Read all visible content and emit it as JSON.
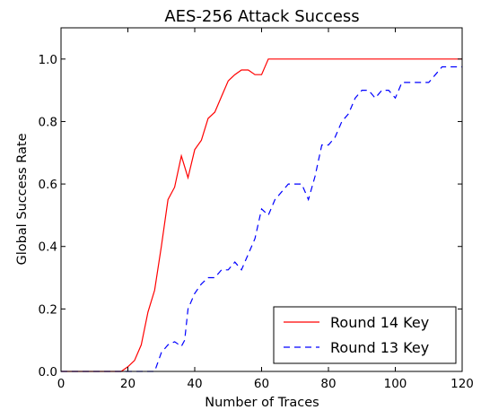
{
  "chart_data": {
    "type": "line",
    "title": "AES-256 Attack Success",
    "xlabel": "Number of Traces",
    "ylabel": "Global Success Rate",
    "xlim": [
      0,
      120
    ],
    "ylim": [
      0,
      1.1
    ],
    "x_ticks": [
      0,
      20,
      40,
      60,
      80,
      100,
      120
    ],
    "y_ticks": [
      0.0,
      0.2,
      0.4,
      0.6,
      0.8,
      1.0
    ],
    "x_tick_labels": [
      "0",
      "20",
      "40",
      "60",
      "80",
      "100",
      "120"
    ],
    "y_tick_labels": [
      "0.0",
      "0.2",
      "0.4",
      "0.6",
      "0.8",
      "1.0"
    ],
    "grid": false,
    "legend_position": "lower-right",
    "series": [
      {
        "name": "Round 14 Key",
        "color": "#ff0000",
        "linestyle": "solid",
        "x": [
          0,
          18,
          20,
          22,
          24,
          26,
          28,
          30,
          32,
          34,
          36,
          38,
          40,
          42,
          44,
          46,
          48,
          50,
          52,
          54,
          56,
          58,
          60,
          62,
          64,
          120
        ],
        "y": [
          0.0,
          0.0,
          0.015,
          0.035,
          0.085,
          0.19,
          0.26,
          0.4,
          0.55,
          0.59,
          0.69,
          0.62,
          0.71,
          0.74,
          0.81,
          0.83,
          0.88,
          0.93,
          0.95,
          0.965,
          0.965,
          0.95,
          0.95,
          1.0,
          1.0,
          1.0
        ]
      },
      {
        "name": "Round 13 Key",
        "color": "#0000ff",
        "linestyle": "dashed",
        "x": [
          0,
          28,
          30,
          32,
          34,
          36,
          37,
          38,
          40,
          42,
          44,
          46,
          48,
          50,
          52,
          54,
          56,
          58,
          60,
          62,
          64,
          66,
          68,
          70,
          72,
          74,
          76,
          78,
          80,
          82,
          84,
          86,
          88,
          90,
          92,
          94,
          96,
          98,
          100,
          102,
          104,
          106,
          108,
          110,
          112,
          114,
          116,
          118,
          120
        ],
        "y": [
          0.0,
          0.0,
          0.06,
          0.085,
          0.095,
          0.08,
          0.1,
          0.2,
          0.25,
          0.28,
          0.3,
          0.3,
          0.325,
          0.325,
          0.35,
          0.325,
          0.375,
          0.425,
          0.52,
          0.5,
          0.55,
          0.575,
          0.6,
          0.6,
          0.6,
          0.55,
          0.625,
          0.725,
          0.725,
          0.75,
          0.8,
          0.825,
          0.875,
          0.9,
          0.9,
          0.875,
          0.9,
          0.9,
          0.875,
          0.925,
          0.925,
          0.925,
          0.925,
          0.925,
          0.95,
          0.975,
          0.975,
          0.975,
          0.975
        ]
      }
    ]
  }
}
